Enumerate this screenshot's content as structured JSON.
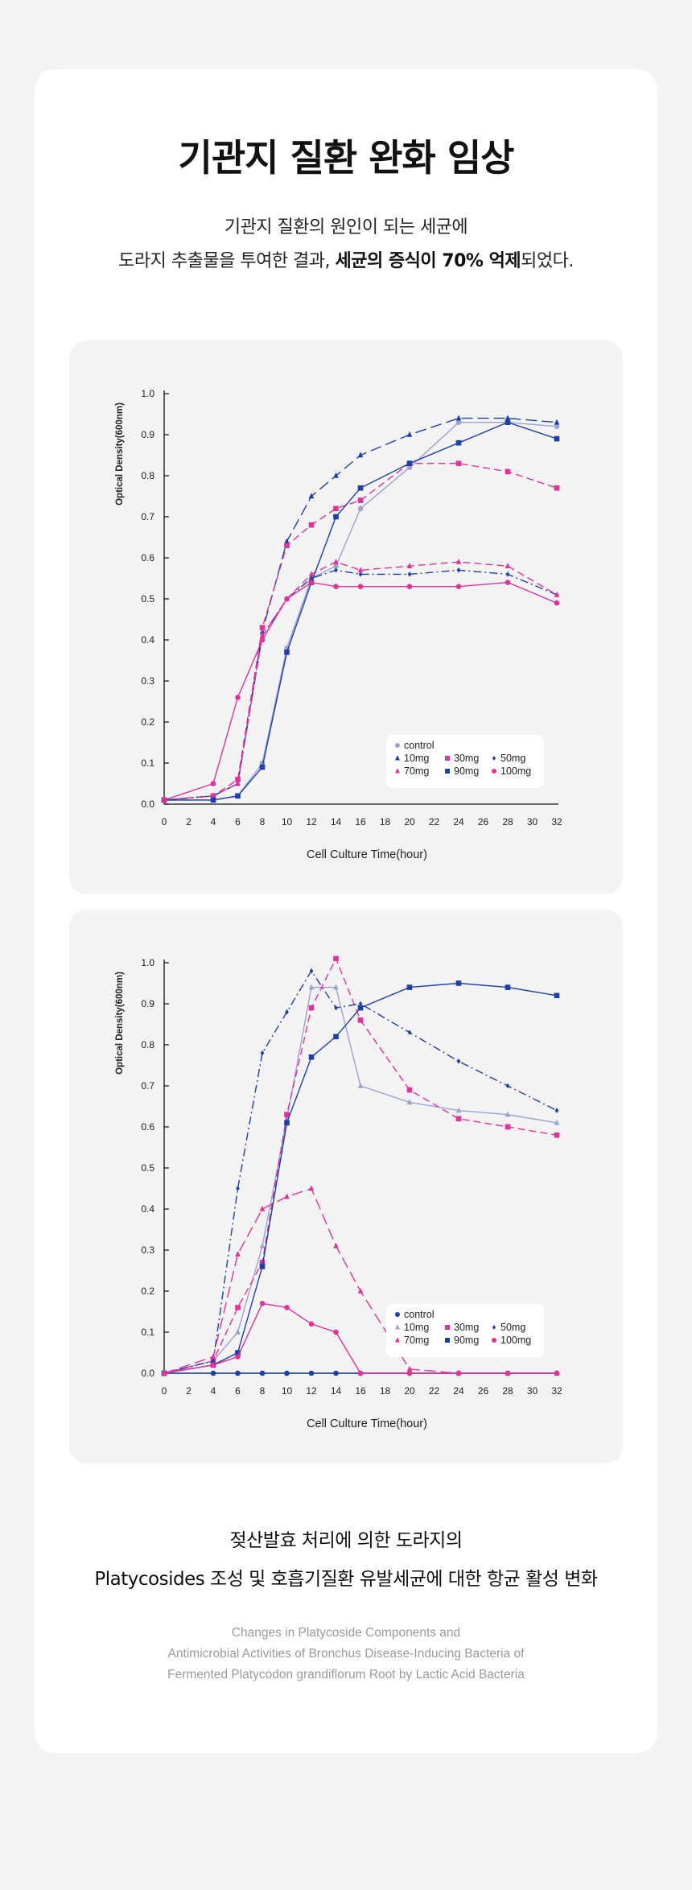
{
  "title": "기관지 질환 완화 임상",
  "intro": {
    "line1": "기관지 질환의 원인이 되는 세균에",
    "line2_pre": "도라지 추출물을 투여한 결과, ",
    "line2_bold": "세균의 증식이 70% 억제",
    "line2_post": "되었다."
  },
  "caption": {
    "line1": "젖산발효 처리에 의한 도라지의",
    "line2": "Platycosides 조성 및 호흡기질환 유발세균에 대한 항균 활성 변화"
  },
  "english_caption": [
    "Changes in Platycoside Components and",
    "Antimicrobial Activities of Bronchus Disease-Inducing Bacteria of",
    "Fermented Platycodon grandiflorum Root by Lactic Acid Bacteria"
  ],
  "colors": {
    "blue": "#1d3fa8",
    "blue_light": "#9aa3cf",
    "pink": "#e0329a",
    "card": "#ffffff",
    "panel": "#f3f3f3",
    "page": "#f3f3f3"
  },
  "chart_data": [
    {
      "type": "line",
      "title": "",
      "xlabel": "Cell Culture Time(hour)",
      "ylabel": "Optical Density(600nm)",
      "xlim": [
        0,
        32
      ],
      "ylim": [
        0,
        1.0
      ],
      "xticks": [
        "0",
        "2",
        "4",
        "6",
        "8",
        "10",
        "12",
        "14",
        "16",
        "18",
        "20",
        "22",
        "24",
        "26",
        "28",
        "30",
        "32"
      ],
      "yticks": [
        "0.0",
        "0.1",
        "0.2",
        "0.3",
        "0.4",
        "0.5",
        "0.6",
        "0.7",
        "0.8",
        "0.9",
        "1.0"
      ],
      "legend_position": "bottom-right",
      "series": [
        {
          "name": "control",
          "color": "#9aa3cf",
          "dash": "solid",
          "marker": "circle",
          "points": [
            [
              0,
              0.01
            ],
            [
              4,
              0.01
            ],
            [
              6,
              0.02
            ],
            [
              8,
              0.1
            ],
            [
              10,
              0.38
            ],
            [
              12,
              0.55
            ],
            [
              14,
              0.58
            ],
            [
              16,
              0.72
            ],
            [
              20,
              0.82
            ],
            [
              24,
              0.93
            ],
            [
              28,
              0.93
            ],
            [
              32,
              0.92
            ]
          ]
        },
        {
          "name": "10mg",
          "color": "#1d3fa8",
          "dash": "longdash",
          "marker": "triangle",
          "points": [
            [
              0,
              0.01
            ],
            [
              4,
              0.02
            ],
            [
              6,
              0.05
            ],
            [
              8,
              0.42
            ],
            [
              10,
              0.64
            ],
            [
              12,
              0.75
            ],
            [
              14,
              0.8
            ],
            [
              16,
              0.85
            ],
            [
              20,
              0.9
            ],
            [
              24,
              0.94
            ],
            [
              28,
              0.94
            ],
            [
              32,
              0.93
            ]
          ]
        },
        {
          "name": "30mg",
          "color": "#e0329a",
          "dash": "dash",
          "marker": "square",
          "points": [
            [
              0,
              0.01
            ],
            [
              4,
              0.02
            ],
            [
              6,
              0.06
            ],
            [
              8,
              0.43
            ],
            [
              10,
              0.63
            ],
            [
              12,
              0.68
            ],
            [
              14,
              0.72
            ],
            [
              16,
              0.74
            ],
            [
              20,
              0.83
            ],
            [
              24,
              0.83
            ],
            [
              28,
              0.81
            ],
            [
              32,
              0.77
            ]
          ]
        },
        {
          "name": "50mg",
          "color": "#1d3fa8",
          "dash": "dashdot",
          "marker": "diamond",
          "points": [
            [
              0,
              0.01
            ],
            [
              4,
              0.02
            ],
            [
              6,
              0.05
            ],
            [
              8,
              0.41
            ],
            [
              10,
              0.5
            ],
            [
              12,
              0.55
            ],
            [
              14,
              0.57
            ],
            [
              16,
              0.56
            ],
            [
              20,
              0.56
            ],
            [
              24,
              0.57
            ],
            [
              28,
              0.56
            ],
            [
              32,
              0.51
            ]
          ]
        },
        {
          "name": "70mg",
          "color": "#e0329a",
          "dash": "dash",
          "marker": "triangle",
          "points": [
            [
              0,
              0.01
            ],
            [
              4,
              0.02
            ],
            [
              6,
              0.05
            ],
            [
              8,
              0.41
            ],
            [
              10,
              0.5
            ],
            [
              12,
              0.56
            ],
            [
              14,
              0.59
            ],
            [
              16,
              0.57
            ],
            [
              20,
              0.58
            ],
            [
              24,
              0.59
            ],
            [
              28,
              0.58
            ],
            [
              32,
              0.51
            ]
          ]
        },
        {
          "name": "90mg",
          "color": "#1d3fa8",
          "dash": "solid",
          "marker": "square",
          "points": [
            [
              0,
              0.01
            ],
            [
              4,
              0.01
            ],
            [
              6,
              0.02
            ],
            [
              8,
              0.09
            ],
            [
              10,
              0.37
            ],
            [
              12,
              0.54
            ],
            [
              14,
              0.7
            ],
            [
              16,
              0.77
            ],
            [
              20,
              0.83
            ],
            [
              24,
              0.88
            ],
            [
              28,
              0.93
            ],
            [
              32,
              0.89
            ]
          ]
        },
        {
          "name": "100mg",
          "color": "#e0329a",
          "dash": "solid",
          "marker": "circle",
          "points": [
            [
              0,
              0.01
            ],
            [
              4,
              0.05
            ],
            [
              6,
              0.26
            ],
            [
              8,
              0.4
            ],
            [
              10,
              0.5
            ],
            [
              12,
              0.54
            ],
            [
              14,
              0.53
            ],
            [
              16,
              0.53
            ],
            [
              20,
              0.53
            ],
            [
              24,
              0.53
            ],
            [
              28,
              0.54
            ],
            [
              32,
              0.49
            ]
          ]
        }
      ]
    },
    {
      "type": "line",
      "title": "",
      "xlabel": "Cell Culture Time(hour)",
      "ylabel": "Optical Density(600nm)",
      "xlim": [
        0,
        32
      ],
      "ylim": [
        0,
        1.0
      ],
      "xticks": [
        "0",
        "2",
        "4",
        "6",
        "8",
        "10",
        "12",
        "14",
        "16",
        "18",
        "20",
        "22",
        "24",
        "26",
        "28",
        "30",
        "32"
      ],
      "yticks": [
        "0.0",
        "0.1",
        "0.2",
        "0.3",
        "0.4",
        "0.5",
        "0.6",
        "0.7",
        "0.8",
        "0.9",
        "1.0"
      ],
      "legend_position": "bottom-right",
      "series": [
        {
          "name": "control",
          "color": "#1d3fa8",
          "dash": "solid",
          "marker": "circle",
          "points": [
            [
              0,
              0.0
            ],
            [
              4,
              0.0
            ],
            [
              6,
              0.0
            ],
            [
              8,
              0.0
            ],
            [
              10,
              0.0
            ],
            [
              12,
              0.0
            ],
            [
              14,
              0.0
            ],
            [
              16,
              0.0
            ],
            [
              20,
              0.0
            ],
            [
              24,
              0.0
            ],
            [
              28,
              0.0
            ],
            [
              32,
              0.0
            ]
          ]
        },
        {
          "name": "10mg",
          "color": "#9aa3cf",
          "dash": "solid",
          "marker": "triangle",
          "points": [
            [
              0,
              0.0
            ],
            [
              4,
              0.03
            ],
            [
              6,
              0.1
            ],
            [
              8,
              0.31
            ],
            [
              10,
              0.62
            ],
            [
              12,
              0.94
            ],
            [
              14,
              0.94
            ],
            [
              16,
              0.7
            ],
            [
              20,
              0.66
            ],
            [
              24,
              0.64
            ],
            [
              28,
              0.63
            ],
            [
              32,
              0.61
            ]
          ]
        },
        {
          "name": "30mg",
          "color": "#e0329a",
          "dash": "dash",
          "marker": "square",
          "points": [
            [
              0,
              0.0
            ],
            [
              4,
              0.03
            ],
            [
              6,
              0.16
            ],
            [
              8,
              0.27
            ],
            [
              10,
              0.63
            ],
            [
              12,
              0.89
            ],
            [
              14,
              1.01
            ],
            [
              16,
              0.86
            ],
            [
              20,
              0.69
            ],
            [
              24,
              0.62
            ],
            [
              28,
              0.6
            ],
            [
              32,
              0.58
            ]
          ]
        },
        {
          "name": "50mg",
          "color": "#1d3fa8",
          "dash": "dashdot",
          "marker": "diamond",
          "points": [
            [
              0,
              0.0
            ],
            [
              4,
              0.03
            ],
            [
              6,
              0.45
            ],
            [
              8,
              0.78
            ],
            [
              10,
              0.88
            ],
            [
              12,
              0.98
            ],
            [
              14,
              0.89
            ],
            [
              16,
              0.9
            ],
            [
              20,
              0.83
            ],
            [
              24,
              0.76
            ],
            [
              28,
              0.7
            ],
            [
              32,
              0.64
            ]
          ]
        },
        {
          "name": "70mg",
          "color": "#e0329a",
          "dash": "longdash",
          "marker": "triangle",
          "points": [
            [
              0,
              0.0
            ],
            [
              4,
              0.04
            ],
            [
              6,
              0.29
            ],
            [
              8,
              0.4
            ],
            [
              10,
              0.43
            ],
            [
              12,
              0.45
            ],
            [
              14,
              0.31
            ],
            [
              16,
              0.2
            ],
            [
              20,
              0.01
            ],
            [
              24,
              0.0
            ],
            [
              28,
              0.0
            ],
            [
              32,
              0.0
            ]
          ]
        },
        {
          "name": "90mg",
          "color": "#1d3fa8",
          "dash": "solid",
          "marker": "square",
          "points": [
            [
              0,
              0.0
            ],
            [
              4,
              0.02
            ],
            [
              6,
              0.05
            ],
            [
              8,
              0.26
            ],
            [
              10,
              0.61
            ],
            [
              12,
              0.77
            ],
            [
              14,
              0.82
            ],
            [
              16,
              0.89
            ],
            [
              20,
              0.94
            ],
            [
              24,
              0.95
            ],
            [
              28,
              0.94
            ],
            [
              32,
              0.92
            ]
          ]
        },
        {
          "name": "100mg",
          "color": "#e0329a",
          "dash": "solid",
          "marker": "circle",
          "points": [
            [
              0,
              0.0
            ],
            [
              4,
              0.02
            ],
            [
              6,
              0.04
            ],
            [
              8,
              0.17
            ],
            [
              10,
              0.16
            ],
            [
              12,
              0.12
            ],
            [
              14,
              0.1
            ],
            [
              16,
              0.0
            ],
            [
              20,
              0.0
            ],
            [
              24,
              0.0
            ],
            [
              28,
              0.0
            ],
            [
              32,
              0.0
            ]
          ]
        }
      ]
    }
  ]
}
